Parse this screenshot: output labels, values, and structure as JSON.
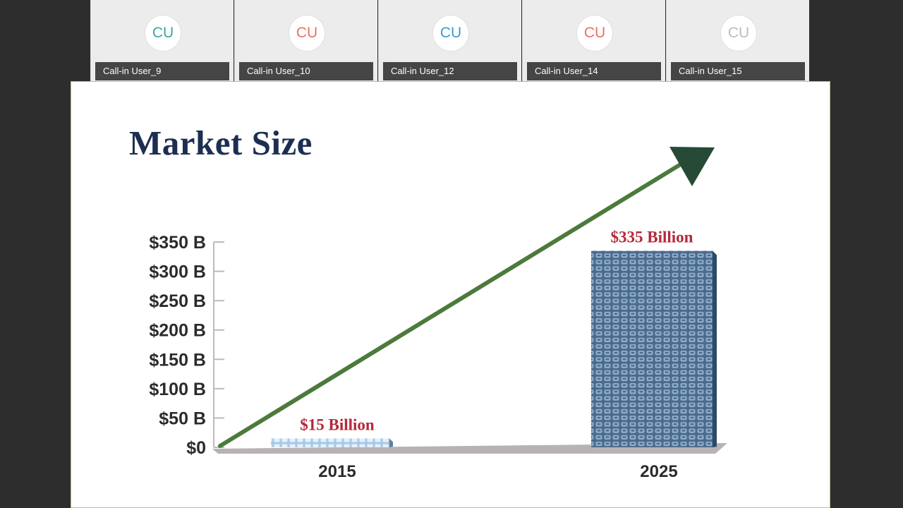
{
  "participants": [
    {
      "initials": "CU",
      "name": "Call-in User_9",
      "color": "#3aa8a0"
    },
    {
      "initials": "CU",
      "name": "Call-in User_10",
      "color": "#e8735f"
    },
    {
      "initials": "CU",
      "name": "Call-in User_12",
      "color": "#3c9ad0"
    },
    {
      "initials": "CU",
      "name": "Call-in User_14",
      "color": "#e8735f"
    },
    {
      "initials": "CU",
      "name": "Call-in User_15",
      "color": "#bdbdbd"
    }
  ],
  "slide": {
    "title": "Market Size"
  },
  "chart_data": {
    "type": "bar",
    "title": "Market Size",
    "categories": [
      "2015",
      "2025"
    ],
    "values": [
      15,
      335
    ],
    "value_labels": [
      "$15 Billion",
      "$335 Billion"
    ],
    "ylim": [
      0,
      350
    ],
    "yticks": [
      0,
      50,
      100,
      150,
      200,
      250,
      300,
      350
    ],
    "ytick_labels": [
      "$0",
      "$50 B",
      "$100 B",
      "$150 B",
      "$200 B",
      "$250 B",
      "$300 B",
      "$350 B"
    ],
    "xlabel": "",
    "ylabel": "",
    "trend_arrow": true,
    "colors": {
      "bar": "#4d6a8c",
      "bar_small": "#8fb6d6",
      "label": "#b5283a",
      "arrow": "#4c7a3c",
      "arrow_head": "#264a35",
      "axis": "#bbbbbb",
      "floor": "#b8b3b3",
      "ticks_text": "#2b2b2b"
    }
  }
}
